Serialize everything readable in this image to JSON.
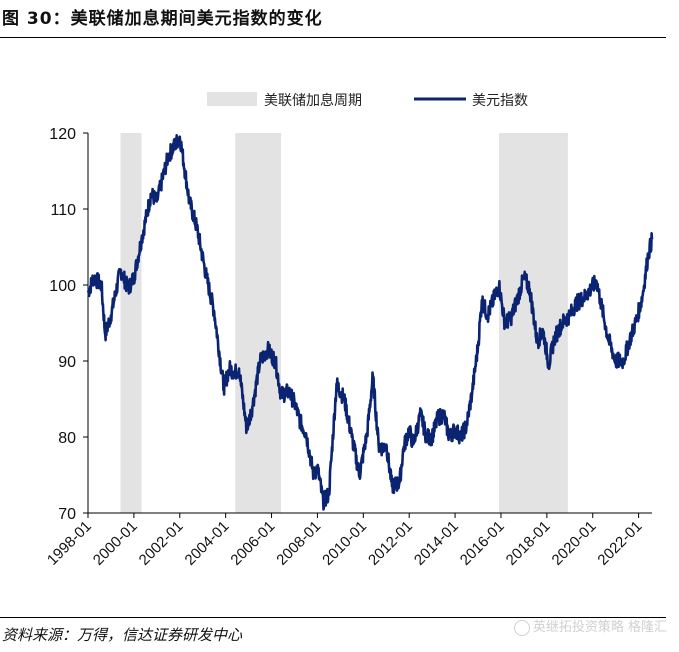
{
  "figure": {
    "title": "图 30：美联储加息期间美元指数的变化",
    "source": "资料来源：万得，信达证券研发中心",
    "watermark": "英继拓投资策略 格隆汇"
  },
  "colors": {
    "line": "#0b2472",
    "shade": "#e3e3e3",
    "axis": "#000000"
  },
  "chart_data": {
    "type": "line",
    "title": "",
    "xlabel": "",
    "ylabel": "",
    "ylim": [
      70,
      120
    ],
    "yticks": [
      70,
      80,
      90,
      100,
      110,
      120
    ],
    "xlim": [
      "1998-01",
      "2022-08"
    ],
    "xticks": [
      "1998-01",
      "2000-01",
      "2002-01",
      "2004-01",
      "2006-01",
      "2008-01",
      "2010-01",
      "2012-01",
      "2014-01",
      "2016-01",
      "2018-01",
      "2020-01",
      "2022-01"
    ],
    "legend_position": "top-right",
    "shaded_periods": {
      "name": "美联储加息周期",
      "ranges": [
        [
          "1999-06",
          "2000-05"
        ],
        [
          "2004-06",
          "2006-06"
        ],
        [
          "2015-12",
          "2018-12"
        ]
      ]
    },
    "series": [
      {
        "name": "美元指数",
        "x": [
          "1998-01",
          "1998-04",
          "1998-08",
          "1998-10",
          "1999-01",
          "1999-06",
          "1999-10",
          "2000-01",
          "2000-05",
          "2000-10",
          "2001-01",
          "2001-07",
          "2002-01",
          "2002-02",
          "2002-06",
          "2002-10",
          "2003-03",
          "2003-07",
          "2003-12",
          "2004-03",
          "2004-06",
          "2004-08",
          "2004-12",
          "2005-03",
          "2005-07",
          "2005-11",
          "2006-03",
          "2006-06",
          "2006-10",
          "2007-01",
          "2007-04",
          "2007-07",
          "2007-11",
          "2008-01",
          "2008-04",
          "2008-07",
          "2008-11",
          "2009-03",
          "2009-07",
          "2009-11",
          "2010-03",
          "2010-06",
          "2010-09",
          "2010-11",
          "2011-01",
          "2011-04",
          "2011-08",
          "2011-10",
          "2012-01",
          "2012-03",
          "2012-07",
          "2012-10",
          "2013-01",
          "2013-04",
          "2013-07",
          "2013-10",
          "2014-01",
          "2014-04",
          "2014-07",
          "2014-10",
          "2015-01",
          "2015-03",
          "2015-06",
          "2015-12",
          "2016-03",
          "2016-06",
          "2016-10",
          "2017-01",
          "2017-04",
          "2017-08",
          "2017-11",
          "2018-02",
          "2018-05",
          "2018-09",
          "2019-01",
          "2019-04",
          "2019-09",
          "2020-03",
          "2020-05",
          "2020-09",
          "2021-01",
          "2021-05",
          "2021-08",
          "2021-12",
          "2022-03",
          "2022-06",
          "2022-08"
        ],
        "values": [
          99.0,
          101.0,
          100.0,
          93.5,
          96.0,
          102.0,
          99.5,
          101.0,
          106.0,
          112.0,
          111.0,
          117.0,
          119.5,
          118.0,
          111.0,
          107.5,
          101.0,
          96.5,
          86.5,
          89.0,
          88.5,
          89.0,
          81.0,
          84.0,
          90.0,
          91.5,
          90.0,
          85.5,
          86.0,
          84.5,
          82.0,
          80.5,
          75.0,
          76.0,
          71.5,
          72.5,
          87.0,
          85.0,
          80.0,
          75.0,
          80.5,
          88.0,
          79.0,
          78.5,
          79.0,
          73.5,
          74.0,
          78.5,
          81.0,
          79.0,
          83.0,
          80.0,
          80.0,
          82.5,
          83.0,
          80.0,
          81.0,
          80.0,
          81.5,
          86.0,
          92.0,
          98.0,
          96.0,
          100.0,
          95.0,
          95.5,
          98.5,
          101.0,
          99.5,
          92.5,
          94.0,
          89.5,
          93.0,
          95.0,
          96.0,
          97.5,
          98.5,
          100.5,
          98.0,
          93.0,
          90.0,
          90.0,
          92.5,
          95.5,
          98.5,
          104.0,
          106.0
        ]
      }
    ]
  }
}
